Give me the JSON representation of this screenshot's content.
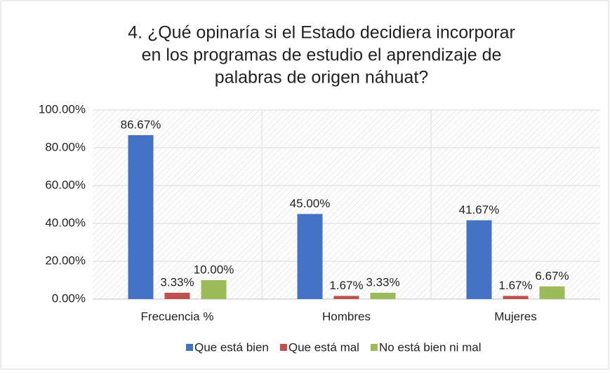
{
  "chart_data": {
    "type": "bar",
    "title": [
      "4. ¿Qué opinaría  si el Estado decidiera incorporar",
      "en los programas de estudio el aprendizaje de",
      "palabras de origen náhuat?"
    ],
    "categories": [
      "Frecuencia %",
      "Hombres",
      "Mujeres"
    ],
    "series": [
      {
        "name": "Que está bien",
        "color": "#4472c4",
        "values": [
          86.67,
          45,
          41.67
        ],
        "value_labels": [
          "86.67%",
          "45.00%",
          "41.67%"
        ]
      },
      {
        "name": "Que está mal",
        "color": "#c0504d",
        "values": [
          3.33,
          1.67,
          1.67
        ],
        "value_labels": [
          "3.33%",
          "1.67%",
          "1.67%"
        ]
      },
      {
        "name": "No está bien ni mal",
        "color": "#9bbb59",
        "values": [
          10,
          3.33,
          6.67
        ],
        "value_labels": [
          "10.00%",
          "3.33%",
          "6.67%"
        ]
      }
    ],
    "ylim": [
      0,
      100
    ],
    "yticks": [
      {
        "value": 0,
        "label": "0.00%"
      },
      {
        "value": 20,
        "label": "20.00%"
      },
      {
        "value": 40,
        "label": "40.00%"
      },
      {
        "value": 60,
        "label": "60.00%"
      },
      {
        "value": 80,
        "label": "80.00%"
      },
      {
        "value": 100,
        "label": "100.00%"
      }
    ],
    "grid": true,
    "legend": "bottom"
  }
}
